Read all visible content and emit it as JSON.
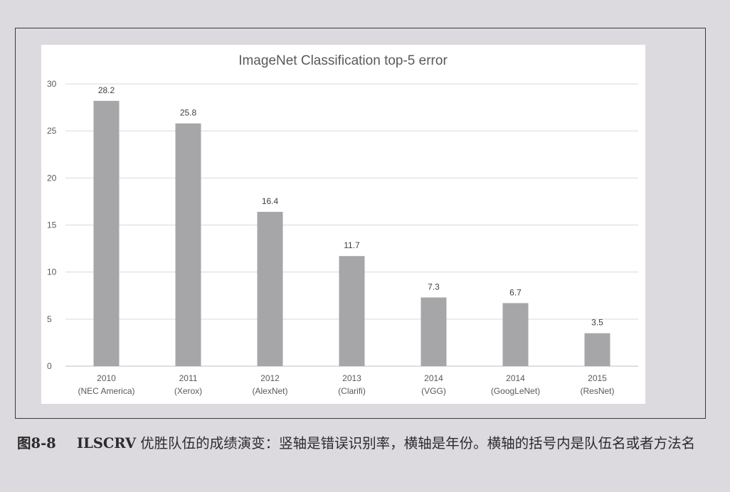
{
  "chart_data": {
    "type": "bar",
    "title": "ImageNet Classification top-5 error",
    "xlabel": "",
    "ylabel": "",
    "ylim": [
      0,
      30
    ],
    "yticks": [
      0,
      5,
      10,
      15,
      20,
      25,
      30
    ],
    "grid": true,
    "legend": "none",
    "bar_color": "#a6a6a8",
    "categories": [
      {
        "year": "2010",
        "team": "(NEC America)"
      },
      {
        "year": "2011",
        "team": "(Xerox)"
      },
      {
        "year": "2012",
        "team": "(AlexNet)"
      },
      {
        "year": "2013",
        "team": "(Clarifi)"
      },
      {
        "year": "2014",
        "team": "(VGG)"
      },
      {
        "year": "2014",
        "team": "(GoogLeNet)"
      },
      {
        "year": "2015",
        "team": "(ResNet)"
      }
    ],
    "values": [
      28.2,
      25.8,
      16.4,
      11.7,
      7.3,
      6.7,
      3.5
    ],
    "value_labels": [
      "28.2",
      "25.8",
      "16.4",
      "11.7",
      "7.3",
      "6.7",
      "3.5"
    ]
  },
  "caption": {
    "number": "图8-8",
    "lead": "ILSCRV",
    "text": "优胜队伍的成绩演变：竖轴是错误识别率，横轴是年份。横轴的括号内是队伍名或者方法名"
  }
}
